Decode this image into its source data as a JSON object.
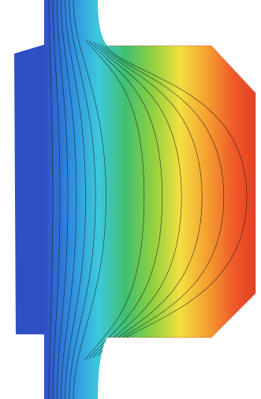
{
  "figure": {
    "background": "#ffffff",
    "colormap": [
      "#2f4fc4",
      "#2f8fe0",
      "#3cc8dc",
      "#40c070",
      "#8fd040",
      "#f2e040",
      "#f5a030",
      "#ee5a2a",
      "#e23a20"
    ],
    "contour_line_color": "#1a1a1a",
    "contour_count": 13
  }
}
